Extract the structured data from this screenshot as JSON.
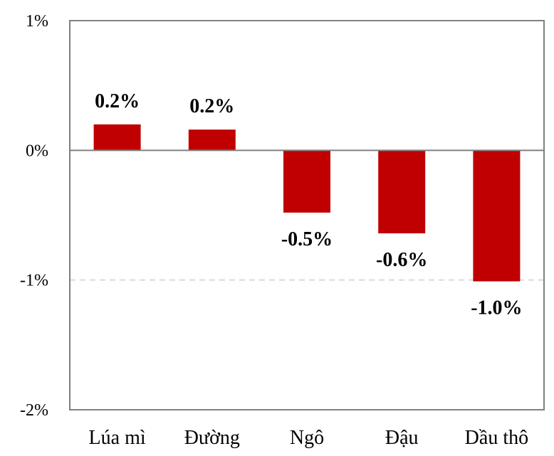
{
  "chart_data": {
    "type": "bar",
    "categories": [
      "Lúa mì",
      "Đường",
      "Ngô",
      "Đậu",
      "Dầu thô"
    ],
    "values": [
      0.2,
      0.16,
      -0.48,
      -0.64,
      -1.01
    ],
    "data_labels": [
      "0.2%",
      "0.2%",
      "-0.5%",
      "-0.6%",
      "-1.0%"
    ],
    "ylim": [
      -2,
      1
    ],
    "yticks": [
      1,
      0,
      -1,
      -2
    ],
    "ytick_labels": [
      "1%",
      "0%",
      "-1%",
      "-2%"
    ],
    "bar_color": "#c00000",
    "grid": "dashed line at -1%",
    "title": "",
    "xlabel": "",
    "ylabel": ""
  }
}
